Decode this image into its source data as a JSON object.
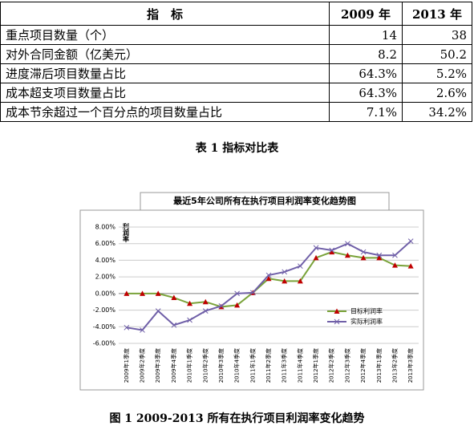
{
  "table": {
    "header": [
      "指　标",
      "2009 年",
      "2013 年"
    ],
    "rows": [
      [
        "重点项目数量（个）",
        "14",
        "38"
      ],
      [
        "对外合同金额（亿美元）",
        "8.2",
        "50.2"
      ],
      [
        "进度滞后项目数量占比",
        "64.3%",
        "5.2%"
      ],
      [
        "成本超支项目数量占比",
        "64.3%",
        "2.6%"
      ],
      [
        "成本节余超过一个百分点的项目数量占比",
        "7.1%",
        "34.2%"
      ]
    ]
  },
  "table_caption": "表 1  指标对比表",
  "chart_data": {
    "type": "line",
    "title": "最近5年公司所有在执行项目利润率变化趋势图",
    "y_label": "利润率",
    "categories": [
      "2009年1季度",
      "2009年2季度",
      "2009年3季度",
      "2009年4季度",
      "2010年1季度",
      "2010年2季度",
      "2010年3季度",
      "2010年4季度",
      "2011年1季度",
      "2011年2季度",
      "2011年3季度",
      "2011年4季度",
      "2012年1季度",
      "2012年2季度",
      "2012年3季度",
      "2012年4季度",
      "2013年1季度",
      "2013年2季度",
      "2013年3季度"
    ],
    "series": [
      {
        "name": "目标利润率",
        "color": "#7aa33a",
        "marker_color": "#c00000",
        "values": [
          0,
          0,
          0,
          -0.5,
          -1.2,
          -1.0,
          -1.6,
          -1.4,
          0.1,
          1.8,
          1.5,
          1.5,
          4.3,
          5.0,
          4.6,
          4.3,
          4.3,
          3.4,
          3.3
        ]
      },
      {
        "name": "实际利润率",
        "color": "#7060a8",
        "values": [
          -4.1,
          -4.4,
          -2.1,
          -3.8,
          -3.2,
          -2.1,
          -1.5,
          0,
          0.1,
          2.2,
          2.6,
          3.3,
          5.5,
          5.2,
          6.0,
          5.0,
          4.6,
          4.6,
          6.3
        ]
      }
    ],
    "ylim": [
      -6,
      8
    ],
    "yticks": [
      {
        "value": -6,
        "label": "-6.00%"
      },
      {
        "value": -4,
        "label": "-4.00%"
      },
      {
        "value": -2,
        "label": "-2.00%"
      },
      {
        "value": 0,
        "label": "0.00%"
      },
      {
        "value": 2,
        "label": "2.00%"
      },
      {
        "value": 4,
        "label": "4.00%"
      },
      {
        "value": 6,
        "label": "6.00%"
      },
      {
        "value": 8,
        "label": "8.00%"
      }
    ],
    "grid": true,
    "legend": "right"
  },
  "figure_caption": "图 1  2009-2013 所有在执行项目利润率变化趋势"
}
